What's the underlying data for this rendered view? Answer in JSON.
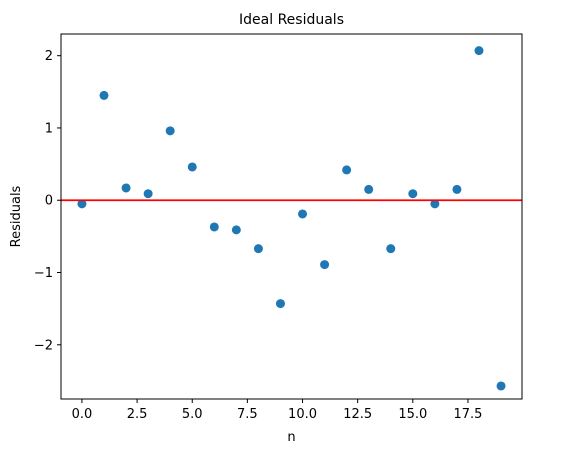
{
  "chart_data": {
    "type": "scatter",
    "title": "Ideal Residuals",
    "xlabel": "n",
    "ylabel": "Residuals",
    "xlim": [
      -0.95,
      19.95
    ],
    "ylim": [
      -2.75,
      2.3
    ],
    "xticks": [
      0.0,
      2.5,
      5.0,
      7.5,
      10.0,
      12.5,
      15.0,
      17.5
    ],
    "xtick_labels": [
      "0.0",
      "2.5",
      "5.0",
      "7.5",
      "10.0",
      "12.5",
      "15.0",
      "17.5"
    ],
    "yticks": [
      -2,
      -1,
      0,
      1,
      2
    ],
    "ytick_labels": [
      "−2",
      "−1",
      "0",
      "1",
      "2"
    ],
    "grid": false,
    "points": {
      "x": [
        0,
        1,
        2,
        3,
        4,
        5,
        6,
        7,
        8,
        9,
        10,
        11,
        12,
        13,
        14,
        15,
        16,
        17,
        18,
        19
      ],
      "y": [
        -0.05,
        1.45,
        0.17,
        0.09,
        0.96,
        0.46,
        -0.37,
        -0.41,
        -0.67,
        -1.43,
        -0.19,
        -0.89,
        0.42,
        0.15,
        -0.67,
        0.09,
        -0.05,
        0.15,
        2.07,
        -2.57
      ]
    },
    "reference_line": {
      "y": 0
    },
    "colors": {
      "points": "#1f77b4",
      "reference_line": "#ff0000",
      "axes": "#000000"
    }
  }
}
